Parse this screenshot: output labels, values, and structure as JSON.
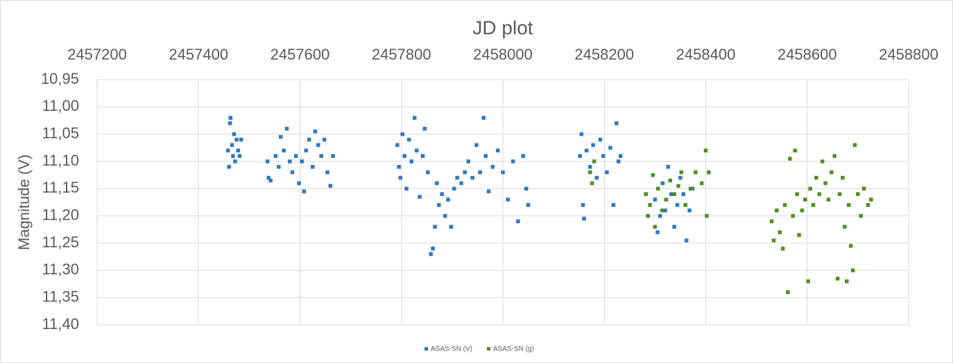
{
  "chart_data": {
    "type": "scatter",
    "title": "JD plot",
    "ylabel": "Magnitude (V)",
    "xlim": [
      2457200,
      2458800
    ],
    "xticks": [
      2457200,
      2457400,
      2457600,
      2457800,
      2458000,
      2458200,
      2458400,
      2458600,
      2458800
    ],
    "ylim": [
      10.95,
      11.4
    ],
    "y_inverted": true,
    "yticks": [
      {
        "value": 10.95,
        "label": "10,95"
      },
      {
        "value": 11.0,
        "label": "11,00"
      },
      {
        "value": 11.05,
        "label": "11,05"
      },
      {
        "value": 11.1,
        "label": "11,10"
      },
      {
        "value": 11.15,
        "label": "11,15"
      },
      {
        "value": 11.2,
        "label": "11,20"
      },
      {
        "value": 11.25,
        "label": "11,25"
      },
      {
        "value": 11.3,
        "label": "11,30"
      },
      {
        "value": 11.35,
        "label": "11,35"
      },
      {
        "value": 11.4,
        "label": "11,40"
      }
    ],
    "grid": true,
    "legend": "bottom",
    "series": [
      {
        "name": "ASAS-SN (V)",
        "color": "#2e78c2",
        "x": [
          2457458,
          2457460,
          2457462,
          2457463,
          2457466,
          2457468,
          2457470,
          2457472,
          2457475,
          2457478,
          2457481,
          2457484,
          2457536,
          2457538,
          2457542,
          2457552,
          2457558,
          2457562,
          2457568,
          2457574,
          2457580,
          2457585,
          2457592,
          2457598,
          2457604,
          2457608,
          2457612,
          2457618,
          2457625,
          2457630,
          2457636,
          2457642,
          2457648,
          2457654,
          2457660,
          2457665,
          2457792,
          2457795,
          2457798,
          2457802,
          2457806,
          2457810,
          2457815,
          2457820,
          2457826,
          2457830,
          2457836,
          2457842,
          2457846,
          2457852,
          2457858,
          2457862,
          2457866,
          2457870,
          2457874,
          2457880,
          2457886,
          2457892,
          2457898,
          2457904,
          2457910,
          2457918,
          2457925,
          2457932,
          2457940,
          2457948,
          2457955,
          2457962,
          2457966,
          2457972,
          2457980,
          2457990,
          2458000,
          2458010,
          2458020,
          2458030,
          2458040,
          2458046,
          2458050,
          2458152,
          2458155,
          2458158,
          2458160,
          2458165,
          2458172,
          2458178,
          2458185,
          2458192,
          2458198,
          2458205,
          2458212,
          2458218,
          2458224,
          2458228,
          2458232,
          2458300,
          2458305,
          2458310,
          2458315,
          2458320,
          2458326,
          2458332,
          2458338,
          2458344,
          2458350,
          2458356,
          2458362,
          2458368,
          2458374
        ],
        "y": [
          11.08,
          11.11,
          11.03,
          11.02,
          11.07,
          11.09,
          11.05,
          11.1,
          11.06,
          11.08,
          11.09,
          11.06,
          11.1,
          11.13,
          11.135,
          11.09,
          11.11,
          11.055,
          11.08,
          11.04,
          11.1,
          11.12,
          11.09,
          11.14,
          11.1,
          11.155,
          11.08,
          11.06,
          11.11,
          11.045,
          11.07,
          11.09,
          11.06,
          11.12,
          11.145,
          11.09,
          11.07,
          11.11,
          11.13,
          11.05,
          11.09,
          11.15,
          11.06,
          11.1,
          11.02,
          11.08,
          11.165,
          11.09,
          11.04,
          11.12,
          11.27,
          11.26,
          11.22,
          11.14,
          11.18,
          11.16,
          11.2,
          11.17,
          11.22,
          11.15,
          11.13,
          11.14,
          11.12,
          11.1,
          11.13,
          11.07,
          11.12,
          11.02,
          11.09,
          11.155,
          11.11,
          11.08,
          11.12,
          11.17,
          11.1,
          11.21,
          11.09,
          11.15,
          11.18,
          11.09,
          11.05,
          11.18,
          11.205,
          11.08,
          11.11,
          11.07,
          11.13,
          11.06,
          11.09,
          11.12,
          11.075,
          11.18,
          11.03,
          11.1,
          11.09,
          11.17,
          11.23,
          11.2,
          11.14,
          11.19,
          11.11,
          11.16,
          11.22,
          11.18,
          11.13,
          11.16,
          11.245,
          11.19,
          11.15
        ]
      },
      {
        "name": "ASAS-SN (g)",
        "color": "#4f8f22",
        "x": [
          2458172,
          2458176,
          2458180,
          2458282,
          2458286,
          2458290,
          2458296,
          2458300,
          2458306,
          2458314,
          2458322,
          2458330,
          2458338,
          2458346,
          2458352,
          2458360,
          2458370,
          2458380,
          2458392,
          2458400,
          2458402,
          2458406,
          2458530,
          2458534,
          2458540,
          2458546,
          2458552,
          2458556,
          2458562,
          2458566,
          2458572,
          2458576,
          2458580,
          2458584,
          2458590,
          2458596,
          2458602,
          2458606,
          2458612,
          2458618,
          2458624,
          2458630,
          2458636,
          2458642,
          2458648,
          2458654,
          2458660,
          2458664,
          2458670,
          2458674,
          2458678,
          2458682,
          2458686,
          2458690,
          2458694,
          2458700,
          2458706,
          2458712,
          2458720,
          2458726
        ],
        "y": [
          11.12,
          11.14,
          11.1,
          11.16,
          11.2,
          11.18,
          11.125,
          11.22,
          11.15,
          11.19,
          11.17,
          11.135,
          11.16,
          11.145,
          11.12,
          11.18,
          11.15,
          11.12,
          11.14,
          11.08,
          11.2,
          11.12,
          11.21,
          11.245,
          11.19,
          11.23,
          11.26,
          11.18,
          11.34,
          11.095,
          11.2,
          11.08,
          11.16,
          11.235,
          11.19,
          11.17,
          11.32,
          11.15,
          11.18,
          11.13,
          11.16,
          11.1,
          11.14,
          11.17,
          11.12,
          11.09,
          11.315,
          11.16,
          11.13,
          11.22,
          11.32,
          11.18,
          11.255,
          11.3,
          11.07,
          11.16,
          11.2,
          11.15,
          11.18,
          11.17
        ]
      }
    ]
  }
}
